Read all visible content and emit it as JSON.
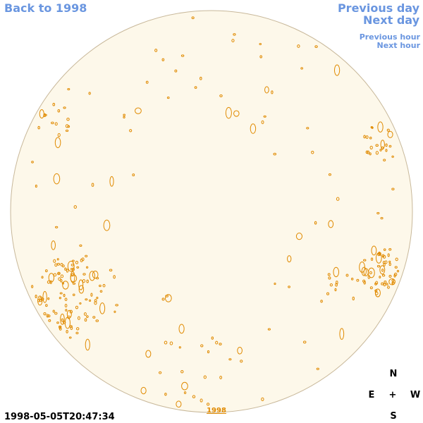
{
  "nav": {
    "back": "Back to 1998",
    "previous_day": "Previous day",
    "next_day": "Next day",
    "previous_hour": "Previous hour",
    "next_hour": "Next hour"
  },
  "disk_label": "1998",
  "timestamp": "1998-05-05T20:47:34",
  "compass": {
    "north": "N",
    "east": "E",
    "center": "+",
    "west": "W",
    "south": "S"
  }
}
